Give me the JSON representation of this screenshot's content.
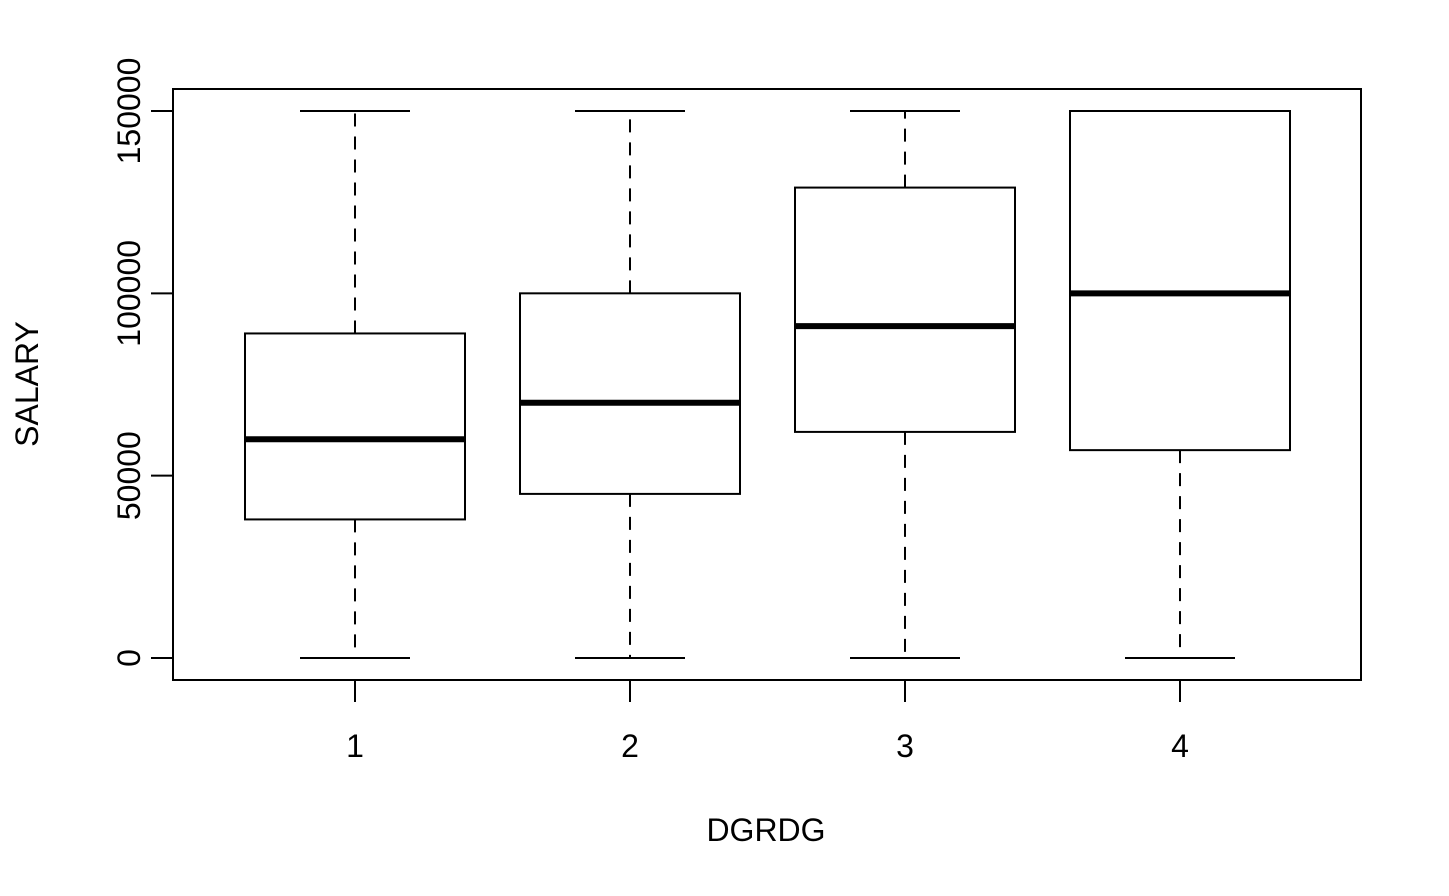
{
  "chart_data": {
    "type": "boxplot",
    "title": "",
    "xlabel": "DGRDG",
    "ylabel": "SALARY",
    "categories": [
      "1",
      "2",
      "3",
      "4"
    ],
    "ylim": [
      -6000,
      156000
    ],
    "yticks": [
      0,
      50000,
      100000,
      150000
    ],
    "ytick_labels": [
      "0",
      "50000",
      "100000",
      "150000"
    ],
    "grid": false,
    "legend": "none",
    "boxes": [
      {
        "category": "1",
        "whisker_low": 0,
        "q1": 38000,
        "median": 60000,
        "q3": 89000,
        "whisker_high": 150000
      },
      {
        "category": "2",
        "whisker_low": 0,
        "q1": 45000,
        "median": 70000,
        "q3": 100000,
        "whisker_high": 150000
      },
      {
        "category": "3",
        "whisker_low": 0,
        "q1": 62000,
        "median": 91000,
        "q3": 129000,
        "whisker_high": 150000
      },
      {
        "category": "4",
        "whisker_low": 0,
        "q1": 57000,
        "median": 100000,
        "q3": 150000,
        "whisker_high": 150000
      }
    ],
    "colors": {
      "stroke": "#000000",
      "box_fill": "#ffffff",
      "background": "#ffffff"
    }
  }
}
